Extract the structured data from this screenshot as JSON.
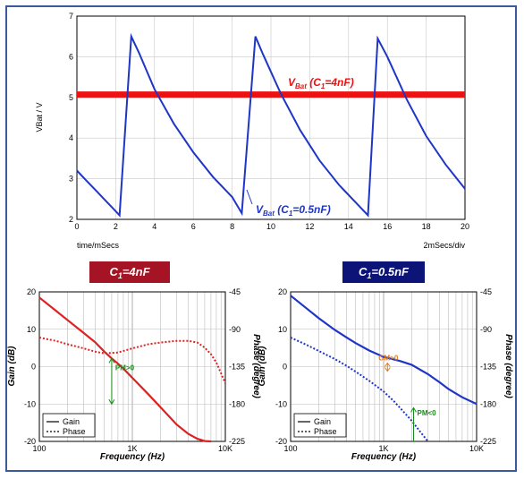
{
  "chart_data": [
    {
      "type": "line",
      "ylabel": "VBat / V",
      "xlabel": "time/mSecs",
      "x_per_div_label": "2mSecs/div",
      "xlim": [
        0,
        20
      ],
      "ylim": [
        2,
        7
      ],
      "x_ticks": [
        "0",
        "2",
        "4",
        "6",
        "8",
        "10",
        "12",
        "14",
        "16",
        "18",
        "20"
      ],
      "y_ticks": [
        "2",
        "3",
        "4",
        "5",
        "6",
        "7"
      ],
      "grid": true,
      "colors": {
        "ripple": "#1f35c8",
        "dc": "#ee1111"
      },
      "series": [
        {
          "name": "VBat (C1=0.5nF)",
          "x": [
            0,
            0.5,
            1.0,
            1.5,
            2.0,
            2.2,
            2.8,
            3.2,
            4.0,
            5.0,
            6.0,
            7.0,
            8.0,
            8.5,
            9.2,
            9.6,
            10.5,
            11.5,
            12.5,
            13.5,
            14.5,
            15.0,
            15.5,
            16.0,
            17.0,
            18.0,
            19.0,
            20.0
          ],
          "y": [
            3.2,
            2.95,
            2.7,
            2.45,
            2.2,
            2.1,
            6.5,
            6.1,
            5.2,
            4.35,
            3.65,
            3.05,
            2.55,
            2.15,
            6.5,
            6.05,
            5.1,
            4.2,
            3.45,
            2.85,
            2.35,
            2.1,
            6.45,
            6.0,
            4.95,
            4.05,
            3.35,
            2.75
          ]
        },
        {
          "name": "VBat (C1=4nF)",
          "x": [
            0,
            20
          ],
          "y": [
            5.07,
            5.07
          ]
        }
      ],
      "annotations": {
        "dc_label_main": "V",
        "dc_label_sub": "Bat",
        "dc_label_rest": " (C",
        "dc_label_sub2": "1",
        "dc_label_tail": "=4nF)",
        "ripple_label_main": "V",
        "ripple_label_sub": "Bat",
        "ripple_label_rest": " (C",
        "ripple_label_sub2": "1",
        "ripple_label_tail": "=0.5nF)"
      }
    },
    {
      "type": "line",
      "header_main": "C",
      "header_sub": "1",
      "header_tail": "=4nF",
      "header_color": "#a51425",
      "xlabel": "Frequency (Hz)",
      "ylabel": "Gain (dB)",
      "y2label": "Phase (degree)",
      "x_scale": "log",
      "xlim": [
        100,
        10000
      ],
      "x_ticks": [
        "100",
        "1K",
        "10K"
      ],
      "ylim": [
        -20,
        20
      ],
      "y_ticks": [
        "20",
        "10",
        "0",
        "-10",
        "-20"
      ],
      "y2lim": [
        -225,
        -45
      ],
      "y2_ticks": [
        "-45",
        "-90",
        "-135",
        "-180",
        "-225"
      ],
      "line_color": "#e02020",
      "series": [
        {
          "name": "Gain",
          "x": [
            100,
            150,
            200,
            300,
            400,
            500,
            600,
            700,
            800,
            1000,
            1500,
            2000,
            3000,
            4000,
            5000,
            6000,
            7000
          ],
          "y": [
            18.5,
            15.0,
            12.5,
            9.0,
            6.5,
            4.0,
            2.2,
            0.8,
            -0.5,
            -3.0,
            -7.5,
            -10.8,
            -15.5,
            -18.0,
            -19.3,
            -19.9,
            -20.0
          ]
        },
        {
          "name": "Phase",
          "x": [
            100,
            150,
            200,
            300,
            400,
            500,
            700,
            1000,
            1500,
            2000,
            3000,
            4000,
            5000,
            6000,
            7000,
            8000,
            9000,
            10000
          ],
          "y": [
            -100,
            -104,
            -108,
            -113,
            -117,
            -119,
            -118,
            -113,
            -108,
            -106,
            -104,
            -104,
            -106,
            -112,
            -120,
            -130,
            -143,
            -155
          ]
        }
      ],
      "annotations": {
        "pm_label": "PM>0",
        "pm_x": 600,
        "pm_gain_top": 2.2,
        "pm_gain_bottom": -10
      },
      "legend": [
        "Gain",
        "Phase"
      ]
    },
    {
      "type": "line",
      "header_main": "C",
      "header_sub": "1",
      "header_tail": "=0.5nF",
      "header_color": "#0c1478",
      "xlabel": "Frequency (Hz)",
      "ylabel": "Gain (dB)",
      "y2label": "Phase (degree)",
      "x_scale": "log",
      "xlim": [
        100,
        10000
      ],
      "x_ticks": [
        "100",
        "1K",
        "10K"
      ],
      "ylim": [
        -20,
        20
      ],
      "y_ticks": [
        "20",
        "10",
        "0",
        "-10",
        "-20"
      ],
      "y2lim": [
        -225,
        -45
      ],
      "y2_ticks": [
        "-45",
        "-90",
        "-135",
        "-180",
        "-225"
      ],
      "line_color": "#1f35c8",
      "series": [
        {
          "name": "Gain",
          "x": [
            100,
            150,
            200,
            300,
            400,
            500,
            700,
            1000,
            1500,
            2000,
            3000,
            4000,
            5000,
            7000,
            10000
          ],
          "y": [
            19.0,
            15.5,
            13.0,
            9.8,
            7.8,
            6.3,
            4.3,
            2.6,
            1.5,
            0.5,
            -2.0,
            -4.2,
            -6.0,
            -8.2,
            -10.0
          ]
        },
        {
          "name": "Phase",
          "x": [
            100,
            150,
            200,
            300,
            400,
            500,
            700,
            1000,
            1300,
            1600,
            2000,
            2500,
            3000
          ],
          "y": [
            -100,
            -109,
            -116,
            -126,
            -134,
            -141,
            -152,
            -165,
            -177,
            -188,
            -200,
            -214,
            -225
          ]
        }
      ],
      "annotations": {
        "gm_label": "GM>0",
        "gm_x": 1100,
        "pm_label": "PM<0",
        "pm_x": 2100
      },
      "legend": [
        "Gain",
        "Phase"
      ]
    }
  ]
}
